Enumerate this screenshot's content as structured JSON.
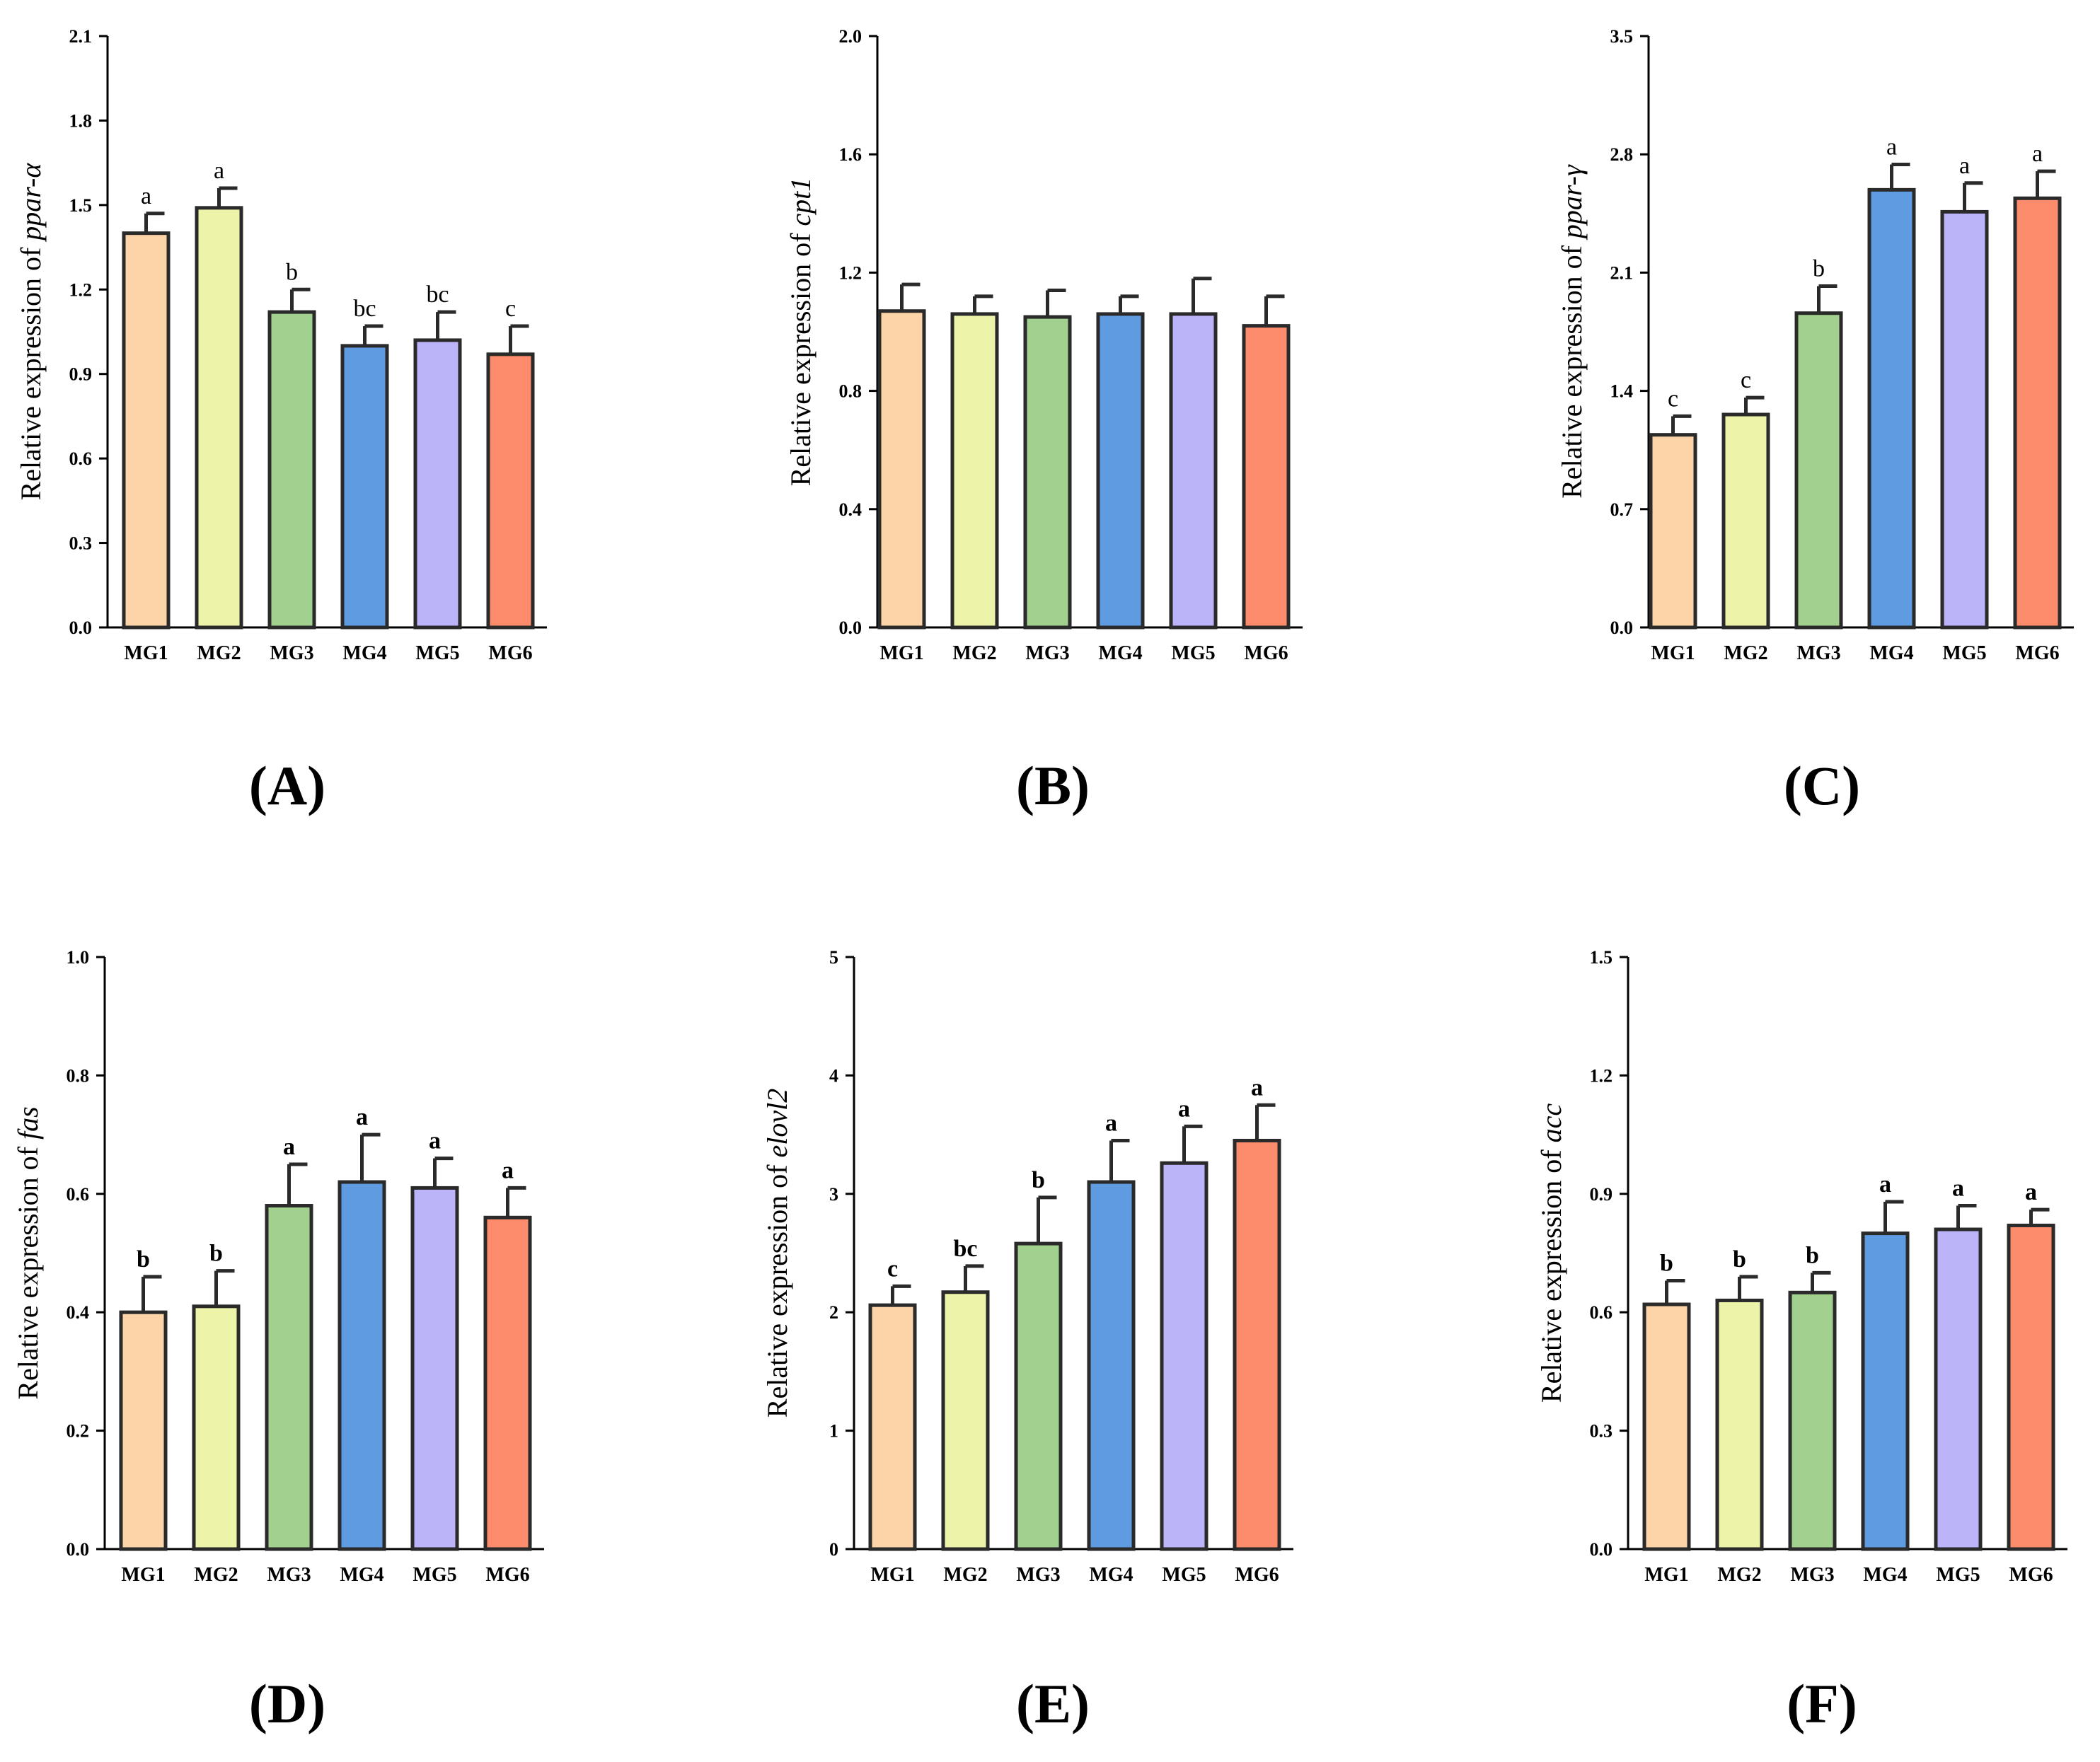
{
  "colors": [
    "#FDD4A8",
    "#EDF3A9",
    "#A2D18F",
    "#5E9BE0",
    "#BCB4F9",
    "#FD8C6C"
  ],
  "ylabel_prefix": "Relative expression of",
  "chart_data": [
    {
      "type": "bar",
      "panel": "(A)",
      "gene": "ppar-α",
      "categories": [
        "MG1",
        "MG2",
        "MG3",
        "MG4",
        "MG5",
        "MG6"
      ],
      "values": [
        1.4,
        1.49,
        1.12,
        1.0,
        1.02,
        0.97
      ],
      "errors": [
        0.07,
        0.07,
        0.08,
        0.07,
        0.1,
        0.1
      ],
      "letters": [
        "a",
        "a",
        "b",
        "bc",
        "bc",
        "c"
      ],
      "ylim": [
        0,
        2.1
      ],
      "yticks": [
        "0.0",
        "0.3",
        "0.6",
        "0.9",
        "1.2",
        "1.5",
        "1.8",
        "2.1"
      ]
    },
    {
      "type": "bar",
      "panel": "(B)",
      "gene": "cpt1",
      "categories": [
        "MG1",
        "MG2",
        "MG3",
        "MG4",
        "MG5",
        "MG6"
      ],
      "values": [
        1.07,
        1.06,
        1.05,
        1.06,
        1.06,
        1.02
      ],
      "errors": [
        0.09,
        0.06,
        0.09,
        0.06,
        0.12,
        0.1
      ],
      "letters": [
        "",
        "",
        "",
        "",
        "",
        ""
      ],
      "ylim": [
        0,
        2.0
      ],
      "yticks": [
        "0.0",
        "0.4",
        "0.8",
        "1.2",
        "1.6",
        "2.0"
      ]
    },
    {
      "type": "bar",
      "panel": "(C)",
      "gene": "ppar-γ",
      "categories": [
        "MG1",
        "MG2",
        "MG3",
        "MG4",
        "MG5",
        "MG6"
      ],
      "values": [
        1.14,
        1.26,
        1.86,
        2.59,
        2.46,
        2.54
      ],
      "errors": [
        0.11,
        0.1,
        0.16,
        0.15,
        0.17,
        0.16
      ],
      "letters": [
        "c",
        "c",
        "b",
        "a",
        "a",
        "a"
      ],
      "ylim": [
        0,
        3.5
      ],
      "yticks": [
        "0.0",
        "0.7",
        "1.4",
        "2.1",
        "2.8",
        "3.5"
      ]
    },
    {
      "type": "bar",
      "panel": "(D)",
      "gene": "fas",
      "categories": [
        "MG1",
        "MG2",
        "MG3",
        "MG4",
        "MG5",
        "MG6"
      ],
      "values": [
        0.4,
        0.41,
        0.58,
        0.62,
        0.61,
        0.56
      ],
      "errors": [
        0.06,
        0.06,
        0.07,
        0.08,
        0.05,
        0.05
      ],
      "letters": [
        "b",
        "b",
        "a",
        "a",
        "a",
        "a"
      ],
      "ylim": [
        0,
        1.0
      ],
      "yticks": [
        "0.0",
        "0.2",
        "0.4",
        "0.6",
        "0.8",
        "1.0"
      ]
    },
    {
      "type": "bar",
      "panel": "(E)",
      "gene": "elovl2",
      "categories": [
        "MG1",
        "MG2",
        "MG3",
        "MG4",
        "MG5",
        "MG6"
      ],
      "values": [
        2.06,
        2.17,
        2.58,
        3.1,
        3.26,
        3.45
      ],
      "errors": [
        0.16,
        0.22,
        0.39,
        0.35,
        0.31,
        0.3
      ],
      "letters": [
        "c",
        "bc",
        "b",
        "a",
        "a",
        "a"
      ],
      "ylim": [
        0,
        5
      ],
      "yticks": [
        "0",
        "1",
        "2",
        "3",
        "4",
        "5"
      ]
    },
    {
      "type": "bar",
      "panel": "(F)",
      "gene": "acc",
      "categories": [
        "MG1",
        "MG2",
        "MG3",
        "MG4",
        "MG5",
        "MG6"
      ],
      "values": [
        0.62,
        0.63,
        0.65,
        0.8,
        0.81,
        0.82
      ],
      "errors": [
        0.06,
        0.06,
        0.05,
        0.08,
        0.06,
        0.04
      ],
      "letters": [
        "b",
        "b",
        "b",
        "a",
        "a",
        "a"
      ],
      "ylim": [
        0,
        1.5
      ],
      "yticks": [
        "0.0",
        "0.3",
        "0.6",
        "0.9",
        "1.2",
        "1.5"
      ]
    }
  ]
}
